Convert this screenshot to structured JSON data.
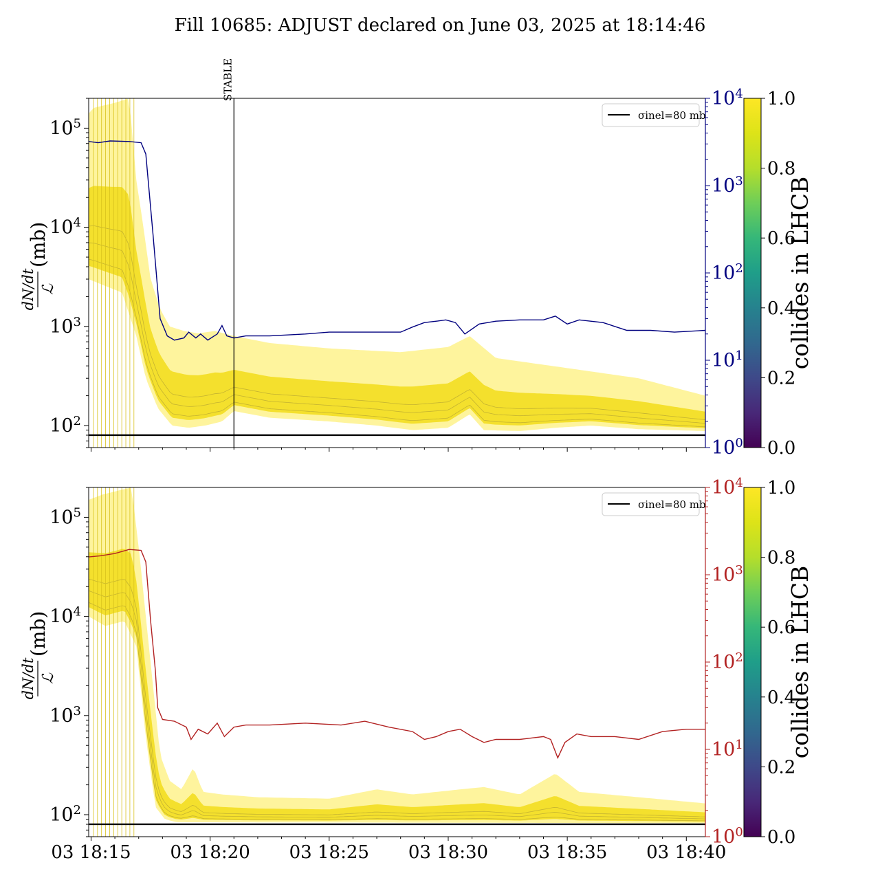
{
  "figure": {
    "title": "Fill 10685: ADJUST declared on June 03, 2025 at 18:14:46"
  },
  "colors": {
    "top_right_axis": "#00007f",
    "bottom_right_axis": "#b22222",
    "band_yellow": "#fde725",
    "reference_line": "#000000"
  },
  "chart_data": [
    {
      "type": "line",
      "panel": "top",
      "ylabel_left": "dN/dt / ℒ (mb)",
      "y_left_scale": "log",
      "y_left_ticks": [
        "10^2",
        "10^3",
        "10^4",
        "10^5"
      ],
      "y_right_scale": "log",
      "y_right_ticks": [
        "10^0",
        "10^1",
        "10^2",
        "10^3",
        "10^4"
      ],
      "y_right_color": "#00007f",
      "x_ticks": [
        "03 18:15",
        "03 18:20",
        "03 18:25",
        "03 18:30",
        "03 18:35",
        "03 18:40"
      ],
      "x_range_min": [
        14.9,
        40.8
      ],
      "legend": {
        "label": "σinel=80 mb",
        "placement": "upper right"
      },
      "vline": {
        "label": "STABLE",
        "x_min": 21.0
      },
      "hline": {
        "value": 80
      },
      "colorbar": {
        "label": "collides in LHCB",
        "ticks": [
          "0.0",
          "0.2",
          "0.4",
          "0.6",
          "0.8",
          "1.0"
        ]
      },
      "band_upper_min_y": [
        [
          14.9,
          140000
        ],
        [
          15.1,
          160000
        ],
        [
          16.0,
          180000
        ],
        [
          16.6,
          200000
        ],
        [
          16.9,
          30000
        ],
        [
          17.2,
          10000
        ],
        [
          17.5,
          3000
        ],
        [
          17.9,
          1500
        ],
        [
          18.3,
          1000
        ],
        [
          18.9,
          900
        ],
        [
          19.5,
          850
        ],
        [
          20.2,
          900
        ],
        [
          21.0,
          800
        ],
        [
          22.5,
          680
        ],
        [
          25.0,
          600
        ],
        [
          28.0,
          550
        ],
        [
          30.0,
          620
        ],
        [
          30.9,
          800
        ],
        [
          32.0,
          480
        ],
        [
          35.0,
          380
        ],
        [
          38.0,
          300
        ],
        [
          40.8,
          200
        ]
      ],
      "band_lower_min_y": [
        [
          14.9,
          3000
        ],
        [
          15.7,
          2500
        ],
        [
          16.3,
          2200
        ],
        [
          16.9,
          800
        ],
        [
          17.3,
          300
        ],
        [
          17.8,
          150
        ],
        [
          18.4,
          100
        ],
        [
          19.1,
          95
        ],
        [
          19.8,
          100
        ],
        [
          20.5,
          110
        ],
        [
          21.0,
          140
        ],
        [
          22.5,
          120
        ],
        [
          25.0,
          110
        ],
        [
          27.0,
          100
        ],
        [
          28.5,
          90
        ],
        [
          30.0,
          95
        ],
        [
          30.9,
          130
        ],
        [
          31.5,
          90
        ],
        [
          33.0,
          88
        ],
        [
          34.5,
          95
        ],
        [
          36.0,
          100
        ],
        [
          38.0,
          92
        ],
        [
          40.8,
          88
        ]
      ],
      "line_min_y": [
        [
          14.9,
          3200
        ],
        [
          15.3,
          3100
        ],
        [
          15.8,
          3250
        ],
        [
          16.6,
          3200
        ],
        [
          17.1,
          3100
        ],
        [
          17.3,
          2300
        ],
        [
          17.6,
          280
        ],
        [
          17.9,
          30
        ],
        [
          18.2,
          19
        ],
        [
          18.5,
          17
        ],
        [
          18.9,
          18
        ],
        [
          19.1,
          21
        ],
        [
          19.4,
          18
        ],
        [
          19.6,
          20
        ],
        [
          19.9,
          17
        ],
        [
          20.3,
          20
        ],
        [
          20.5,
          25
        ],
        [
          20.7,
          19
        ],
        [
          21.0,
          18
        ],
        [
          21.5,
          19
        ],
        [
          22.5,
          19
        ],
        [
          24.0,
          20
        ],
        [
          25.0,
          21
        ],
        [
          26.5,
          21
        ],
        [
          28.0,
          21
        ],
        [
          28.5,
          24
        ],
        [
          29.0,
          27
        ],
        [
          29.5,
          28
        ],
        [
          29.9,
          29
        ],
        [
          30.3,
          27
        ],
        [
          30.7,
          20
        ],
        [
          31.3,
          26
        ],
        [
          32.0,
          28
        ],
        [
          33.0,
          29
        ],
        [
          34.0,
          29
        ],
        [
          34.5,
          32
        ],
        [
          35.0,
          26
        ],
        [
          35.5,
          29
        ],
        [
          36.5,
          27
        ],
        [
          37.5,
          22
        ],
        [
          38.5,
          22
        ],
        [
          39.5,
          21
        ],
        [
          40.8,
          22
        ]
      ]
    },
    {
      "type": "line",
      "panel": "bottom",
      "ylabel_left": "dN/dt / ℒ (mb)",
      "y_left_scale": "log",
      "y_left_ticks": [
        "10^2",
        "10^3",
        "10^4",
        "10^5"
      ],
      "y_right_scale": "log",
      "y_right_ticks": [
        "10^0",
        "10^1",
        "10^2",
        "10^3",
        "10^4"
      ],
      "y_right_color": "#b22222",
      "x_ticks": [
        "03 18:15",
        "03 18:20",
        "03 18:25",
        "03 18:30",
        "03 18:35",
        "03 18:40"
      ],
      "x_range_min": [
        14.9,
        40.8
      ],
      "legend": {
        "label": "σinel=80 mb",
        "placement": "upper right"
      },
      "hline": {
        "value": 80
      },
      "colorbar": {
        "label": "collides in LHCB",
        "ticks": [
          "0.0",
          "0.2",
          "0.4",
          "0.6",
          "0.8",
          "1.0"
        ]
      },
      "band_upper_min_y": [
        [
          14.9,
          150000
        ],
        [
          15.5,
          170000
        ],
        [
          16.3,
          190000
        ],
        [
          16.7,
          200000
        ],
        [
          17.0,
          50000
        ],
        [
          17.3,
          10000
        ],
        [
          17.6,
          2000
        ],
        [
          17.9,
          400
        ],
        [
          18.3,
          220
        ],
        [
          18.8,
          180
        ],
        [
          19.3,
          300
        ],
        [
          19.7,
          170
        ],
        [
          20.5,
          160
        ],
        [
          22.0,
          150
        ],
        [
          25.0,
          145
        ],
        [
          27.0,
          180
        ],
        [
          28.5,
          160
        ],
        [
          30.5,
          180
        ],
        [
          31.5,
          190
        ],
        [
          33.0,
          160
        ],
        [
          34.5,
          260
        ],
        [
          35.5,
          170
        ],
        [
          38.0,
          150
        ],
        [
          40.8,
          130
        ]
      ],
      "band_lower_min_y": [
        [
          14.9,
          10000
        ],
        [
          15.6,
          8000
        ],
        [
          16.4,
          9000
        ],
        [
          16.9,
          5000
        ],
        [
          17.3,
          600
        ],
        [
          17.7,
          120
        ],
        [
          18.1,
          90
        ],
        [
          18.6,
          84
        ],
        [
          40.8,
          82
        ]
      ],
      "line_min_y": [
        [
          14.9,
          1600
        ],
        [
          15.4,
          1650
        ],
        [
          16.0,
          1750
        ],
        [
          16.6,
          1950
        ],
        [
          17.1,
          1900
        ],
        [
          17.3,
          1400
        ],
        [
          17.5,
          300
        ],
        [
          17.7,
          80
        ],
        [
          17.8,
          30
        ],
        [
          18.0,
          22
        ],
        [
          18.5,
          21
        ],
        [
          19.0,
          18
        ],
        [
          19.2,
          13
        ],
        [
          19.5,
          17
        ],
        [
          19.9,
          15
        ],
        [
          20.3,
          20
        ],
        [
          20.6,
          14
        ],
        [
          21.0,
          18
        ],
        [
          21.5,
          19
        ],
        [
          22.5,
          19
        ],
        [
          24.0,
          20
        ],
        [
          25.5,
          19
        ],
        [
          26.5,
          21
        ],
        [
          27.5,
          18
        ],
        [
          28.5,
          16
        ],
        [
          29.0,
          13
        ],
        [
          29.5,
          14
        ],
        [
          30.0,
          16
        ],
        [
          30.5,
          17
        ],
        [
          31.0,
          14
        ],
        [
          31.5,
          12
        ],
        [
          32.0,
          13
        ],
        [
          33.0,
          13
        ],
        [
          34.0,
          14
        ],
        [
          34.3,
          13
        ],
        [
          34.6,
          8
        ],
        [
          34.9,
          12
        ],
        [
          35.4,
          15
        ],
        [
          36.0,
          14
        ],
        [
          37.0,
          14
        ],
        [
          38.0,
          13
        ],
        [
          39.0,
          16
        ],
        [
          40.0,
          17
        ],
        [
          40.8,
          17
        ]
      ]
    }
  ]
}
